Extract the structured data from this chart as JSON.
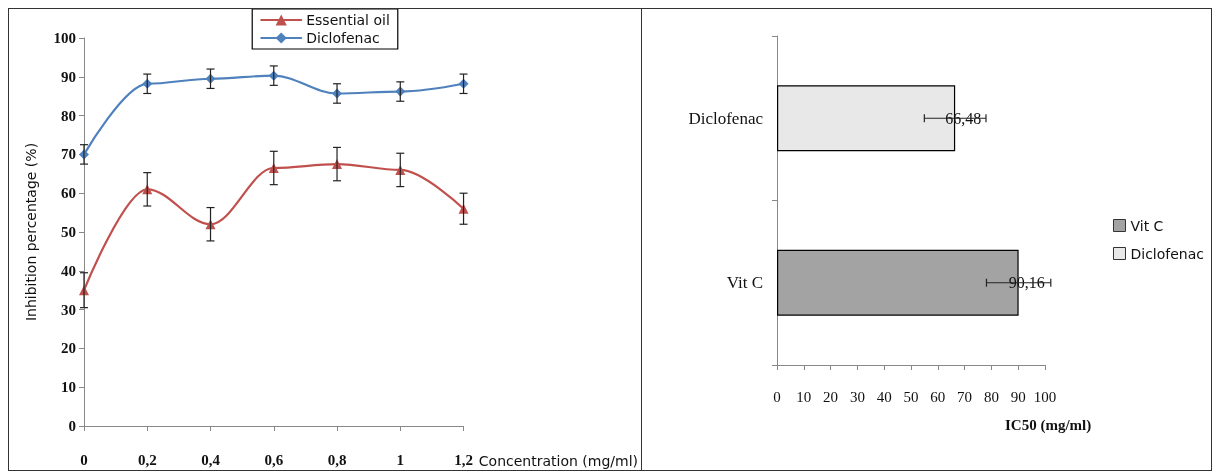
{
  "chart_data": [
    {
      "type": "line",
      "xlabel": "Concentration (mg/ml)",
      "ylabel": "Inhibition percentage (%)",
      "x": [
        0,
        0.2,
        0.4,
        0.6,
        0.8,
        1,
        1.2
      ],
      "series": [
        {
          "name": "Essential oil",
          "color": "#c0504d",
          "marker": "triangle",
          "values": [
            35,
            61,
            52,
            66.5,
            67.5,
            66,
            56
          ],
          "errors": [
            4.5,
            4.3,
            4.3,
            4.3,
            4.3,
            4.3,
            4
          ]
        },
        {
          "name": "Diclofenac",
          "color": "#4f81bd",
          "marker": "diamond",
          "values": [
            70,
            88.2,
            89.5,
            90.3,
            85.7,
            86.2,
            88.2
          ],
          "errors": [
            2.5,
            2.5,
            2.5,
            2.5,
            2.5,
            2.5,
            2.5
          ]
        }
      ],
      "xlim": [
        0,
        1.2
      ],
      "xticks": [
        0,
        {
          "value": 0.2,
          "label": "0,2"
        },
        {
          "value": 0.4,
          "label": "0,4"
        },
        {
          "value": 0.6,
          "label": "0,6"
        },
        {
          "value": 0.8,
          "label": "0,8"
        },
        1,
        {
          "value": 1.2,
          "label": "1,2"
        }
      ],
      "ylim": [
        0,
        100
      ],
      "yticks": [
        0,
        10,
        20,
        30,
        40,
        50,
        60,
        70,
        80,
        90,
        100
      ],
      "grid": false,
      "legend": "top",
      "line_style": "solid"
    },
    {
      "type": "bar",
      "orientation": "horizontal",
      "xlabel": "IC50 (mg/ml)",
      "categories": [
        "Diclofenac",
        "Vit C"
      ],
      "series": [
        {
          "name": "Vit C",
          "color": "#a3a3a3",
          "values": [
            null,
            90.16
          ],
          "value_labels": [
            null,
            "90,16"
          ],
          "errors": [
            null,
            12
          ]
        },
        {
          "name": "Diclofenac",
          "color": "#e8e8e8",
          "values": [
            66.48,
            null
          ],
          "value_labels": [
            "66,48",
            null
          ],
          "errors": [
            11.5,
            null
          ]
        }
      ],
      "xlim": [
        0,
        100
      ],
      "xticks": [
        0,
        10,
        20,
        30,
        40,
        50,
        60,
        70,
        80,
        90,
        100
      ],
      "grid": false,
      "legend": "right"
    }
  ]
}
